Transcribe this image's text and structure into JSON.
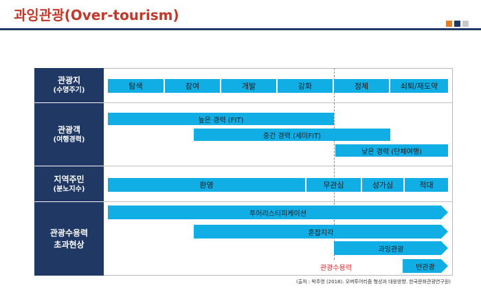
{
  "title": "과잉관광(Over-tourism)",
  "colors": {
    "title": "#c0392b",
    "header_bg": "#1f3864",
    "bar": "#11aee6",
    "capacity_label": "#e02020",
    "accent_squares": [
      "#f07b1c",
      "#1f3864",
      "#c9c9c9"
    ]
  },
  "rows": {
    "lifecycle": {
      "label": "관광지",
      "sublabel": "(수명주기)",
      "stages": [
        "탐색",
        "참여",
        "개발",
        "강화",
        "정체",
        "쇠퇴/재도약"
      ]
    },
    "tourist": {
      "label": "관광객",
      "sublabel": "(여행경력)",
      "bars": [
        "높은 경력 (FIT)",
        "중간 경력 (세미FIT)",
        "낮은 경력 (단체여행)"
      ]
    },
    "residents": {
      "label": "지역주민",
      "sublabel": "(분노지수)",
      "stages": [
        "환영",
        "무관심",
        "성가심",
        "적대"
      ]
    },
    "capacity": {
      "label_line1": "관광수용력",
      "label_line2": "초과현상",
      "arrows": [
        "투어리스티피케이션",
        "혼잡지각",
        "과잉관광",
        "반관광"
      ]
    }
  },
  "capacity_threshold_label": "관광수용력",
  "source": "(출처 : 박주영 (2018). 오버투어리즘 형성과 대응방향. 한국문화관광연구원)"
}
